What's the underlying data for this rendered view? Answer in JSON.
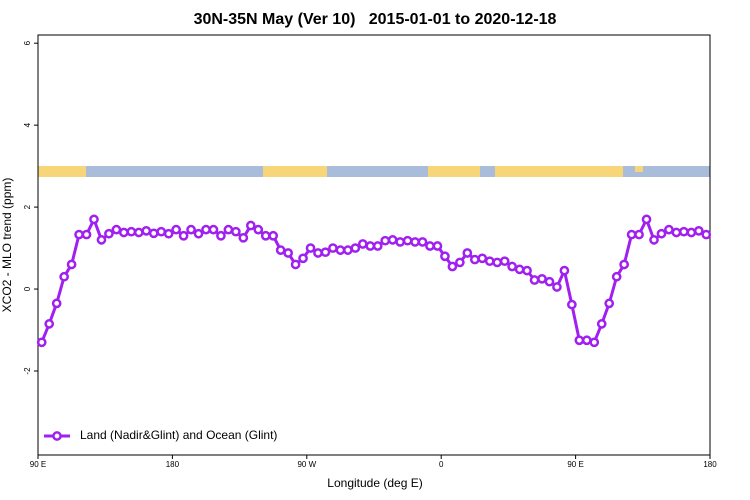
{
  "chart_data": {
    "type": "line",
    "title": "30N-35N May (Ver 10)   2015-01-01 to 2020-12-18",
    "x_label": "Longitude (deg E)",
    "y_label": "XCO2 - MLO trend (ppm)",
    "xlim": [
      90,
      540
    ],
    "ylim": [
      -4.05,
      6.2
    ],
    "xticks": [
      {
        "value": 90,
        "label": "90 E"
      },
      180,
      {
        "value": 270,
        "label": "90 W"
      },
      {
        "value": 360,
        "label": "0"
      },
      {
        "value": 450,
        "label": "90 E"
      },
      {
        "value": 540,
        "label": "180"
      }
    ],
    "yticks": [
      -2,
      0,
      2,
      4,
      6
    ],
    "legend_position": "bottomleft",
    "x": [
      92.5,
      97.5,
      102.5,
      107.5,
      112.5,
      117.5,
      122.5,
      127.5,
      132.5,
      137.5,
      142.5,
      147.5,
      152.5,
      157.5,
      162.5,
      167.5,
      172.5,
      177.5,
      182.5,
      187.5,
      192.5,
      197.5,
      202.5,
      207.5,
      212.5,
      217.5,
      222.5,
      227.5,
      232.5,
      237.5,
      242.5,
      247.5,
      252.5,
      257.5,
      262.5,
      267.5,
      272.5,
      277.5,
      282.5,
      287.5,
      292.5,
      297.5,
      302.5,
      307.5,
      312.5,
      317.5,
      322.5,
      327.5,
      332.5,
      337.5,
      342.5,
      347.5,
      352.5,
      357.5,
      362.5,
      367.5,
      372.5,
      377.5,
      382.5,
      387.5,
      392.5,
      397.5,
      402.5,
      407.5,
      412.5,
      417.5,
      422.5,
      427.5,
      432.5,
      437.5,
      442.5,
      447.5,
      452.5,
      457.5,
      462.5,
      467.5,
      472.5,
      477.5,
      482.5,
      487.5,
      492.5,
      497.5,
      502.5,
      507.5,
      512.5,
      517.5,
      522.5,
      527.5,
      532.5,
      537.5
    ],
    "series": [
      {
        "name": "Land (Nadir&Glint) and Ocean (Glint)",
        "color": "#a020f0",
        "values": [
          -1.3,
          -0.85,
          -0.35,
          0.3,
          0.6,
          1.33,
          1.33,
          1.7,
          1.2,
          1.35,
          1.45,
          1.38,
          1.4,
          1.38,
          1.42,
          1.36,
          1.4,
          1.35,
          1.45,
          1.3,
          1.45,
          1.35,
          1.45,
          1.45,
          1.3,
          1.45,
          1.4,
          1.25,
          1.55,
          1.45,
          1.3,
          1.3,
          0.95,
          0.88,
          0.6,
          0.75,
          1.0,
          0.88,
          0.9,
          1.0,
          0.95,
          0.95,
          1.0,
          1.1,
          1.05,
          1.05,
          1.18,
          1.2,
          1.15,
          1.18,
          1.15,
          1.15,
          1.05,
          1.05,
          0.8,
          0.55,
          0.65,
          0.88,
          0.72,
          0.75,
          0.68,
          0.65,
          0.68,
          0.55,
          0.48,
          0.45,
          0.22,
          0.25,
          0.18,
          0.05,
          0.45,
          -0.38,
          -1.25,
          -1.25,
          -1.3,
          -0.85,
          -0.35,
          0.3,
          0.6,
          1.33,
          1.33,
          1.7,
          1.2,
          1.35,
          1.45,
          1.38,
          1.4,
          1.38,
          1.42,
          1.33
        ]
      }
    ]
  }
}
